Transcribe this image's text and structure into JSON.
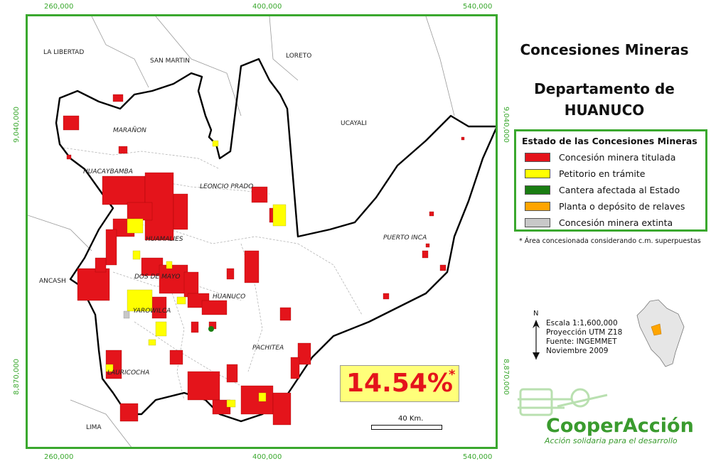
{
  "map": {
    "coords_top": [
      "260,000",
      "400,000",
      "540,000"
    ],
    "coords_bottom": [
      "260,000",
      "400,000",
      "540,000"
    ],
    "coords_left": [
      "9,040,000",
      "8,870,000"
    ],
    "coords_right": [
      "9,040,000",
      "8,870,000"
    ],
    "neighbor_labels": [
      "LA LIBERTAD",
      "SAN MARTIN",
      "LORETO",
      "UCAYALI",
      "ANCASH",
      "LIMA"
    ],
    "province_labels": [
      "MARAÑON",
      "HUACAYBAMBA",
      "LEONCIO PRADO",
      "HUAMALIES",
      "PUERTO INCA",
      "DOS DE MAYO",
      "YAROWILCA",
      "HUANUCO",
      "PACHITEA",
      "LAURICOCHA"
    ]
  },
  "title": {
    "line1": "Concesiones Mineras",
    "line2a": "Departamento de",
    "line2b": "HUANUCO"
  },
  "legend": {
    "title": "Estado de las Concesiones Mineras",
    "items": [
      {
        "label": "Concesión minera titulada",
        "color": "#e4141b"
      },
      {
        "label": "Petitorio en trámite",
        "color": "#ffff00"
      },
      {
        "label": "Cantera afectada al Estado",
        "color": "#1a7d12"
      },
      {
        "label": "Planta o depósito de relaves",
        "color": "#ffa500"
      },
      {
        "label": "Concesión minera extinta",
        "color": "#c8c8c8"
      }
    ]
  },
  "footnote": "* Área concesionada considerando c.m. superpuestas",
  "north_label": "N",
  "meta": {
    "scale": "Escala 1:1,600,000",
    "projection": "Proyección UTM Z18",
    "source": "Fuente: INGEMMET",
    "date": "Noviembre 2009"
  },
  "percentage": {
    "value": "14.54%",
    "asterisk": "*"
  },
  "scale_bar_label": "40 Km.",
  "logo": {
    "name": "CooperAcción",
    "tagline": "Acción solidaria para el desarrollo",
    "color": "#3a9b2e"
  }
}
